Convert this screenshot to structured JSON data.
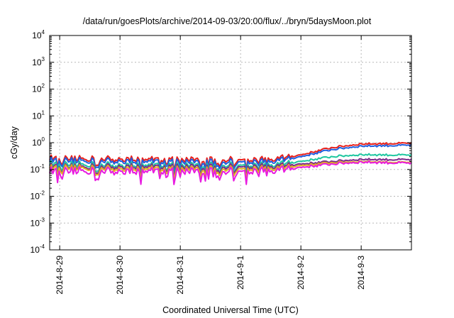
{
  "chart_data": {
    "type": "line",
    "title": "/data/run/goesPlots/archive/2014-09-03/20:00/flux/../bryn/5daysMoon.plot",
    "xlabel": "Coordinated Universal Time (UTC)",
    "ylabel": "cGy/day",
    "yscale": "log",
    "ylim": [
      0.0001,
      10000
    ],
    "xlim": [
      "2014-08-28T20:00",
      "2014-09-03T20:00"
    ],
    "grid": true,
    "y_ticks": [
      {
        "base": "10",
        "exp": "-4"
      },
      {
        "base": "10",
        "exp": "-3"
      },
      {
        "base": "10",
        "exp": "-2"
      },
      {
        "base": "10",
        "exp": "-1"
      },
      {
        "base": "10",
        "exp": "0"
      },
      {
        "base": "10",
        "exp": "1"
      },
      {
        "base": "10",
        "exp": "2"
      },
      {
        "base": "10",
        "exp": "3"
      },
      {
        "base": "10",
        "exp": "4"
      }
    ],
    "x_ticks": [
      "2014-8-29",
      "2014-8-30",
      "2014-8-31",
      "2014-9-1",
      "2014-9-2",
      "2014-9-3"
    ],
    "x_tick_times": [
      "2014-08-29T00:00",
      "2014-08-30T00:00",
      "2014-08-31T00:00",
      "2014-09-01T00:00",
      "2014-09-02T00:00",
      "2014-09-03T00:00"
    ],
    "x_dates": [
      "2014-08-28T20:00",
      "2014-08-29T00:00",
      "2014-08-30T00:00",
      "2014-08-31T00:00",
      "2014-09-01T00:00",
      "2014-09-01T12:00",
      "2014-09-02T00:00",
      "2014-09-02T12:00",
      "2014-09-03T00:00",
      "2014-09-03T20:00"
    ],
    "series": [
      {
        "color": "#e8211c",
        "values": [
          0.28,
          0.26,
          0.25,
          0.24,
          0.24,
          0.24,
          0.35,
          0.65,
          0.9,
          0.95
        ]
      },
      {
        "color": "#1f5fe0",
        "values": [
          0.24,
          0.22,
          0.21,
          0.2,
          0.2,
          0.2,
          0.3,
          0.55,
          0.75,
          0.8
        ]
      },
      {
        "color": "#1fc7a0",
        "values": [
          0.17,
          0.16,
          0.15,
          0.15,
          0.15,
          0.15,
          0.2,
          0.3,
          0.36,
          0.34
        ]
      },
      {
        "color": "#7a2a8a",
        "values": [
          0.14,
          0.13,
          0.13,
          0.13,
          0.13,
          0.13,
          0.16,
          0.2,
          0.24,
          0.23
        ]
      },
      {
        "color": "#e0b020",
        "values": [
          0.12,
          0.12,
          0.11,
          0.11,
          0.11,
          0.11,
          0.14,
          0.18,
          0.2,
          0.18
        ]
      },
      {
        "color": "#e81ce0",
        "values": [
          0.095,
          0.09,
          0.09,
          0.09,
          0.09,
          0.09,
          0.12,
          0.16,
          0.19,
          0.17
        ]
      }
    ]
  }
}
